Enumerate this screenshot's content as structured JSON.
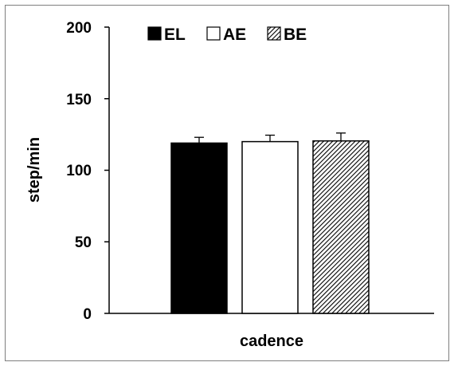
{
  "chart_data": {
    "type": "bar",
    "categories": [
      "cadence"
    ],
    "series": [
      {
        "name": "EL",
        "values": [
          119
        ],
        "error": [
          4
        ],
        "fill": "solid-black"
      },
      {
        "name": "AE",
        "values": [
          120
        ],
        "error": [
          4.5
        ],
        "fill": "white"
      },
      {
        "name": "BE",
        "values": [
          120.5
        ],
        "error": [
          5.5
        ],
        "fill": "diagonal-hatch"
      }
    ],
    "xlabel": "cadence",
    "ylabel": "step/min",
    "ylim": [
      0,
      200
    ],
    "yticks": [
      "0",
      "50",
      "100",
      "150",
      "200"
    ],
    "grid": false,
    "legend_position": "top-left",
    "colors": {
      "bar_edge": "#000000",
      "solid": "#000000",
      "hatch": "#000000",
      "frame": "#7f7f7f"
    }
  }
}
